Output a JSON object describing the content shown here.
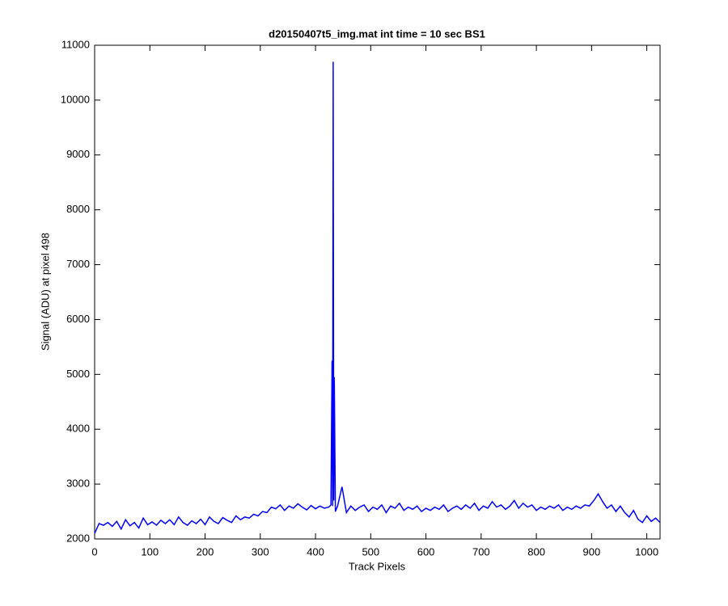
{
  "chart_data": {
    "type": "line",
    "title": "d20150407t5_img.mat int time = 10 sec   BS1",
    "x_label": "Track Pixels",
    "y_label": "Signal (ADU) at pixel 498",
    "color": "#0000ff",
    "xlim": [
      0,
      1024
    ],
    "ylim": [
      2000,
      11000
    ],
    "xticks": [
      0,
      100,
      200,
      300,
      400,
      500,
      600,
      700,
      800,
      900,
      1000
    ],
    "yticks": [
      2000,
      3000,
      4000,
      5000,
      6000,
      7000,
      8000,
      9000,
      10000,
      11000
    ],
    "x": [
      0,
      8,
      16,
      24,
      32,
      40,
      48,
      56,
      64,
      72,
      80,
      88,
      96,
      104,
      112,
      120,
      128,
      136,
      144,
      152,
      160,
      168,
      176,
      184,
      192,
      200,
      208,
      216,
      224,
      232,
      240,
      248,
      256,
      264,
      272,
      280,
      288,
      296,
      304,
      312,
      320,
      328,
      336,
      344,
      352,
      360,
      368,
      376,
      384,
      392,
      400,
      408,
      416,
      424,
      428,
      430,
      431,
      432,
      433,
      434,
      436,
      440,
      448,
      456,
      464,
      472,
      480,
      488,
      496,
      504,
      512,
      520,
      528,
      536,
      544,
      552,
      560,
      568,
      576,
      584,
      592,
      600,
      608,
      616,
      624,
      632,
      640,
      648,
      656,
      664,
      672,
      680,
      688,
      696,
      704,
      712,
      720,
      728,
      736,
      744,
      752,
      760,
      768,
      776,
      784,
      792,
      800,
      808,
      816,
      824,
      832,
      840,
      848,
      856,
      864,
      872,
      880,
      888,
      896,
      904,
      912,
      920,
      928,
      936,
      944,
      952,
      960,
      968,
      976,
      984,
      992,
      1000,
      1008,
      1016,
      1024
    ],
    "values": [
      2100,
      2280,
      2250,
      2300,
      2230,
      2320,
      2180,
      2350,
      2240,
      2300,
      2200,
      2380,
      2260,
      2310,
      2250,
      2340,
      2280,
      2350,
      2260,
      2400,
      2300,
      2250,
      2330,
      2280,
      2360,
      2260,
      2400,
      2320,
      2280,
      2390,
      2340,
      2300,
      2420,
      2350,
      2400,
      2380,
      2450,
      2420,
      2500,
      2480,
      2580,
      2550,
      2620,
      2520,
      2600,
      2560,
      2640,
      2580,
      2530,
      2610,
      2550,
      2600,
      2560,
      2580,
      2620,
      5250,
      2600,
      10700,
      2700,
      4950,
      2500,
      2600,
      2950,
      2480,
      2600,
      2520,
      2580,
      2620,
      2500,
      2580,
      2540,
      2620,
      2480,
      2600,
      2560,
      2650,
      2520,
      2580,
      2540,
      2600,
      2500,
      2560,
      2520,
      2580,
      2540,
      2620,
      2500,
      2560,
      2600,
      2540,
      2620,
      2560,
      2650,
      2520,
      2600,
      2560,
      2680,
      2580,
      2620,
      2540,
      2600,
      2700,
      2560,
      2650,
      2580,
      2620,
      2520,
      2580,
      2540,
      2600,
      2560,
      2620,
      2520,
      2580,
      2540,
      2600,
      2560,
      2620,
      2600,
      2700,
      2820,
      2680,
      2560,
      2620,
      2500,
      2600,
      2480,
      2400,
      2520,
      2360,
      2300,
      2420,
      2320,
      2380,
      2300
    ]
  }
}
